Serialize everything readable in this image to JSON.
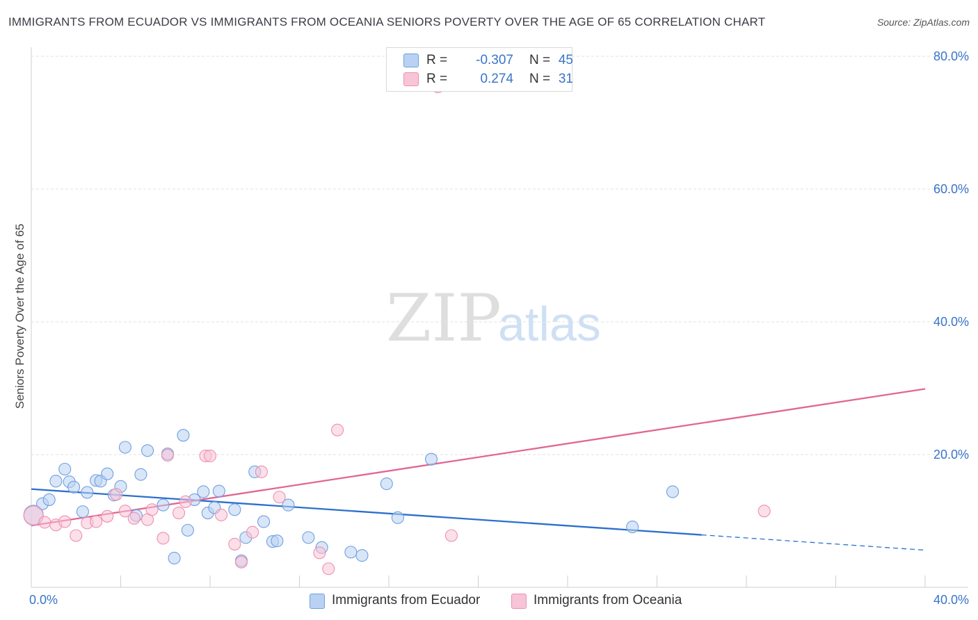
{
  "title": "IMMIGRANTS FROM ECUADOR VS IMMIGRANTS FROM OCEANIA SENIORS POVERTY OVER THE AGE OF 65 CORRELATION CHART",
  "source": "Source: ZipAtlas.com",
  "watermark": {
    "zip": "ZIP",
    "atlas": "atlas"
  },
  "legend": {
    "r_label": "R =",
    "n_label": "N =",
    "rows": [
      {
        "r": "-0.307",
        "n": "45"
      },
      {
        "r": "0.274",
        "n": "31"
      }
    ]
  },
  "chart_data": {
    "type": "scatter",
    "title": "IMMIGRANTS FROM ECUADOR VS IMMIGRANTS FROM OCEANIA SENIORS POVERTY OVER THE AGE OF 65 CORRELATION CHART",
    "xlabel": "",
    "ylabel": "Seniors Poverty Over the Age of 65",
    "xlim": [
      0,
      40
    ],
    "ylim": [
      0,
      80
    ],
    "x_tick_labels": [
      "0.0%",
      "40.0%"
    ],
    "y_ticks": [
      20,
      40,
      60,
      80
    ],
    "y_tick_labels": [
      "20.0%",
      "40.0%",
      "60.0%",
      "80.0%"
    ],
    "grid": true,
    "legend_position": "top-center",
    "series": [
      {
        "name": "Immigrants from Ecuador",
        "color": "#6f9fe0",
        "fill": "#b9d2f3",
        "line_color": "#2c6fcd",
        "trend": {
          "x_start": 0,
          "y_start": 14.8,
          "x_solid_end": 30,
          "y_solid_end": 7.9,
          "x_end": 40,
          "y_end": 5.6
        },
        "points": [
          [
            0.1,
            10.9
          ],
          [
            0.5,
            12.6
          ],
          [
            0.8,
            13.2
          ],
          [
            1.1,
            16.0
          ],
          [
            1.5,
            17.8
          ],
          [
            1.7,
            15.9
          ],
          [
            1.9,
            15.1
          ],
          [
            2.3,
            11.4
          ],
          [
            2.5,
            14.3
          ],
          [
            2.9,
            16.1
          ],
          [
            3.1,
            16.0
          ],
          [
            3.4,
            17.1
          ],
          [
            3.7,
            13.9
          ],
          [
            4.0,
            15.2
          ],
          [
            4.2,
            21.1
          ],
          [
            4.7,
            10.8
          ],
          [
            4.9,
            17.0
          ],
          [
            5.2,
            20.6
          ],
          [
            5.9,
            12.4
          ],
          [
            6.1,
            20.1
          ],
          [
            6.4,
            4.4
          ],
          [
            6.8,
            22.9
          ],
          [
            7.0,
            8.6
          ],
          [
            7.3,
            13.2
          ],
          [
            7.7,
            14.4
          ],
          [
            7.9,
            11.2
          ],
          [
            8.2,
            12.0
          ],
          [
            8.4,
            14.5
          ],
          [
            9.1,
            11.7
          ],
          [
            9.4,
            4.0
          ],
          [
            9.6,
            7.5
          ],
          [
            10.0,
            17.4
          ],
          [
            10.4,
            9.9
          ],
          [
            10.8,
            6.9
          ],
          [
            11.0,
            7.0
          ],
          [
            11.5,
            12.4
          ],
          [
            12.4,
            7.5
          ],
          [
            13.0,
            6.0
          ],
          [
            14.3,
            5.3
          ],
          [
            14.8,
            4.8
          ],
          [
            15.9,
            15.6
          ],
          [
            16.4,
            10.5
          ],
          [
            17.9,
            19.3
          ],
          [
            26.9,
            9.1
          ],
          [
            28.7,
            14.4
          ]
        ]
      },
      {
        "name": "Immigrants from Oceania",
        "color": "#ef8fb0",
        "fill": "#f7c5d7",
        "line_color": "#e26592",
        "trend": {
          "x_start": 0,
          "y_start": 9.3,
          "x_solid_end": 40,
          "y_solid_end": 29.9,
          "x_end": 40,
          "y_end": 29.9
        },
        "points": [
          [
            0.1,
            10.8
          ],
          [
            0.6,
            9.8
          ],
          [
            1.1,
            9.4
          ],
          [
            1.5,
            9.9
          ],
          [
            2.0,
            7.8
          ],
          [
            2.5,
            9.7
          ],
          [
            2.9,
            9.9
          ],
          [
            3.4,
            10.7
          ],
          [
            3.8,
            14.0
          ],
          [
            4.2,
            11.5
          ],
          [
            4.6,
            10.4
          ],
          [
            5.2,
            10.2
          ],
          [
            5.4,
            11.7
          ],
          [
            5.9,
            7.4
          ],
          [
            6.1,
            19.9
          ],
          [
            6.6,
            11.2
          ],
          [
            6.9,
            12.9
          ],
          [
            7.8,
            19.8
          ],
          [
            8.0,
            19.8
          ],
          [
            8.5,
            10.9
          ],
          [
            9.1,
            6.5
          ],
          [
            9.4,
            3.8
          ],
          [
            9.9,
            8.3
          ],
          [
            10.3,
            17.4
          ],
          [
            11.1,
            13.6
          ],
          [
            12.9,
            5.2
          ],
          [
            13.3,
            2.8
          ],
          [
            13.7,
            23.7
          ],
          [
            18.2,
            75.4
          ],
          [
            18.8,
            7.8
          ],
          [
            32.8,
            11.5
          ]
        ]
      }
    ]
  }
}
